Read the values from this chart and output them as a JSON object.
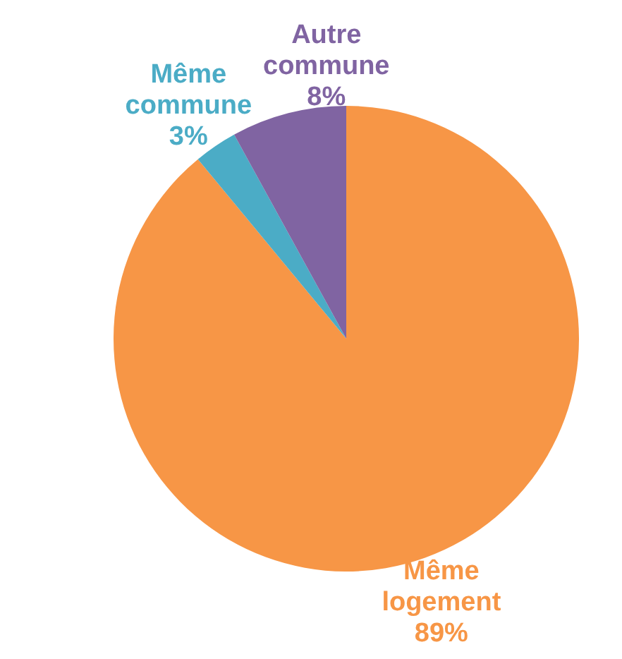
{
  "chart_data": {
    "type": "pie",
    "categories": [
      "Même logement",
      "Même commune",
      "Autre commune"
    ],
    "values": [
      89,
      3,
      8
    ],
    "colors": [
      "#f79646",
      "#4bacc6",
      "#8064a2"
    ],
    "value_labels": [
      "89%",
      "3%",
      "8%"
    ],
    "legend": false
  }
}
